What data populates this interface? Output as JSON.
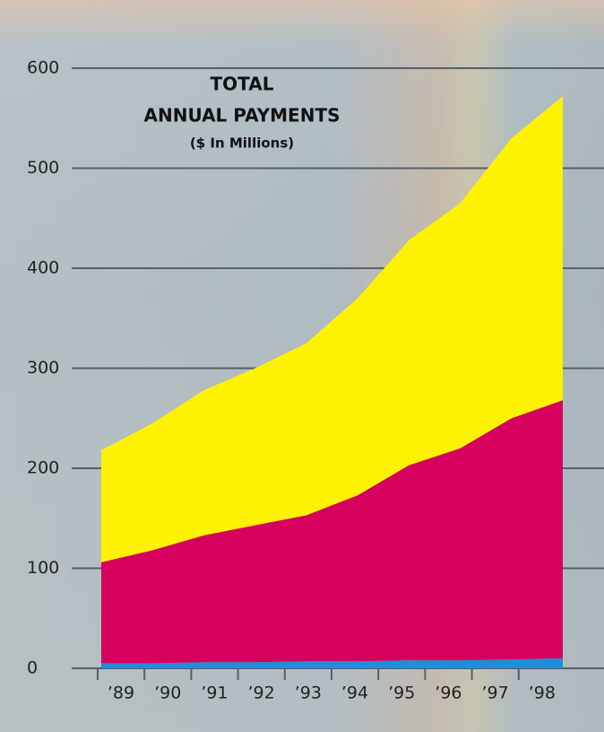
{
  "chart_data": {
    "type": "stacked-area",
    "title": [
      "TOTAL",
      "ANNUAL PAYMENTS"
    ],
    "subtitle": "($ In Millions)",
    "categories": [
      "’89",
      "’90",
      "’91",
      "’92",
      "’93",
      "’94",
      "’95",
      "’96",
      "’97",
      "’98"
    ],
    "series": [
      {
        "color": "#1e8fd6",
        "values": [
          5,
          5,
          6,
          6,
          7,
          7,
          8,
          8,
          9,
          10
        ]
      },
      {
        "color": "#d6005f",
        "values": [
          101,
          113,
          127,
          137,
          146,
          166,
          195,
          212,
          241,
          258
        ]
      },
      {
        "color": "#fff200",
        "values": [
          112,
          127,
          145,
          157,
          172,
          197,
          225,
          245,
          280,
          304
        ]
      }
    ],
    "ylim": [
      0,
      600
    ],
    "yticks": [
      0,
      100,
      200,
      300,
      400,
      500,
      600
    ],
    "grid": true
  }
}
